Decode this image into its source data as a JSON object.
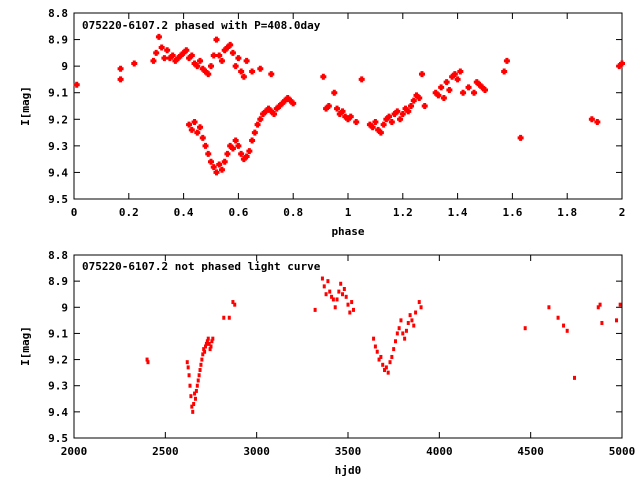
{
  "colors": {
    "points": "#ff0000",
    "axes": "#000000",
    "background": "#ffffff"
  },
  "chart_data": [
    {
      "type": "scatter",
      "title": "075220-6107.2 phased with P=408.0day",
      "xlabel": "phase",
      "ylabel": "I[mag]",
      "xlim": [
        0,
        2
      ],
      "ylim": [
        8.8,
        9.5
      ],
      "y_inverted": true,
      "grid": false,
      "marker": "filled-square-star",
      "xticks": [
        0,
        0.2,
        0.4,
        0.6,
        0.8,
        1,
        1.2,
        1.4,
        1.6,
        1.8,
        2
      ],
      "xtick_labels": [
        "0",
        "0.2",
        "0.4",
        "0.6",
        "0.8",
        "1",
        "1.2",
        "1.4",
        "1.6",
        "1.8",
        "2"
      ],
      "yticks": [
        8.8,
        8.9,
        9.0,
        9.1,
        9.2,
        9.3,
        9.4,
        9.5
      ],
      "ytick_labels": [
        "8.8",
        "8.9",
        "9",
        "9.1",
        "9.2",
        "9.3",
        "9.4",
        "9.5"
      ],
      "x": [
        0.01,
        0.17,
        0.17,
        0.22,
        0.29,
        0.3,
        0.31,
        0.32,
        0.33,
        0.34,
        0.35,
        0.36,
        0.37,
        0.38,
        0.39,
        0.4,
        0.41,
        0.42,
        0.43,
        0.44,
        0.45,
        0.46,
        0.47,
        0.48,
        0.49,
        0.5,
        0.51,
        0.52,
        0.53,
        0.54,
        0.55,
        0.56,
        0.57,
        0.58,
        0.59,
        0.6,
        0.61,
        0.62,
        0.63,
        0.65,
        0.68,
        0.72,
        0.42,
        0.43,
        0.44,
        0.45,
        0.46,
        0.47,
        0.48,
        0.49,
        0.5,
        0.51,
        0.52,
        0.53,
        0.54,
        0.55,
        0.56,
        0.57,
        0.58,
        0.59,
        0.6,
        0.61,
        0.62,
        0.63,
        0.64,
        0.65,
        0.66,
        0.67,
        0.68,
        0.69,
        0.7,
        0.71,
        0.72,
        0.73,
        0.74,
        0.75,
        0.76,
        0.77,
        0.78,
        0.79,
        0.8,
        0.91,
        0.92,
        0.93,
        0.95,
        0.96,
        0.97,
        0.98,
        0.99,
        1.0,
        1.01,
        1.03,
        1.05,
        1.08,
        1.09,
        1.1,
        1.11,
        1.12,
        1.13,
        1.14,
        1.15,
        1.16,
        1.17,
        1.18,
        1.19,
        1.2,
        1.21,
        1.22,
        1.23,
        1.24,
        1.25,
        1.26,
        1.27,
        1.28,
        1.32,
        1.33,
        1.34,
        1.35,
        1.36,
        1.37,
        1.38,
        1.39,
        1.4,
        1.41,
        1.42,
        1.44,
        1.46,
        1.47,
        1.48,
        1.49,
        1.5,
        1.57,
        1.58,
        1.63,
        1.89,
        1.91,
        1.99,
        2.0
      ],
      "y": [
        9.07,
        9.01,
        9.05,
        8.99,
        8.98,
        8.95,
        8.89,
        8.93,
        8.97,
        8.94,
        8.97,
        8.96,
        8.98,
        8.97,
        8.96,
        8.95,
        8.94,
        8.97,
        8.96,
        8.99,
        9.0,
        8.98,
        9.01,
        9.02,
        9.03,
        9.0,
        8.96,
        8.9,
        8.96,
        8.98,
        8.94,
        8.93,
        8.92,
        8.95,
        9.0,
        8.97,
        9.02,
        9.04,
        8.98,
        9.02,
        9.01,
        9.03,
        9.22,
        9.24,
        9.21,
        9.25,
        9.23,
        9.27,
        9.3,
        9.33,
        9.36,
        9.38,
        9.4,
        9.37,
        9.39,
        9.36,
        9.33,
        9.3,
        9.31,
        9.28,
        9.3,
        9.33,
        9.35,
        9.34,
        9.32,
        9.28,
        9.25,
        9.22,
        9.2,
        9.18,
        9.17,
        9.16,
        9.17,
        9.18,
        9.16,
        9.15,
        9.14,
        9.13,
        9.12,
        9.13,
        9.14,
        9.04,
        9.16,
        9.15,
        9.1,
        9.16,
        9.18,
        9.17,
        9.19,
        9.2,
        9.19,
        9.21,
        9.05,
        9.22,
        9.23,
        9.21,
        9.24,
        9.25,
        9.22,
        9.2,
        9.19,
        9.21,
        9.18,
        9.17,
        9.2,
        9.18,
        9.16,
        9.17,
        9.15,
        9.13,
        9.11,
        9.12,
        9.03,
        9.15,
        9.1,
        9.11,
        9.08,
        9.12,
        9.06,
        9.09,
        9.04,
        9.03,
        9.05,
        9.02,
        9.1,
        9.08,
        9.1,
        9.06,
        9.07,
        9.08,
        9.09,
        9.02,
        8.98,
        9.27,
        9.2,
        9.21,
        9.0,
        8.99
      ]
    },
    {
      "type": "scatter",
      "title": "075220-6107.2 not phased light curve",
      "xlabel": "hjd0",
      "ylabel": "I[mag]",
      "xlim": [
        2000,
        5000
      ],
      "ylim": [
        8.8,
        9.5
      ],
      "y_inverted": true,
      "grid": false,
      "marker": "small-dot",
      "xticks": [
        2000,
        2500,
        3000,
        3500,
        4000,
        4500,
        5000
      ],
      "xtick_labels": [
        "2000",
        "2500",
        "3000",
        "3500",
        "4000",
        "4500",
        "5000"
      ],
      "yticks": [
        8.8,
        8.9,
        9.0,
        9.1,
        9.2,
        9.3,
        9.4,
        9.5
      ],
      "ytick_labels": [
        "8.8",
        "8.9",
        "9",
        "9.1",
        "9.2",
        "9.3",
        "9.4",
        "9.5"
      ],
      "x": [
        2400,
        2405,
        2620,
        2625,
        2630,
        2635,
        2640,
        2645,
        2650,
        2655,
        2660,
        2665,
        2670,
        2675,
        2680,
        2685,
        2690,
        2695,
        2700,
        2705,
        2710,
        2715,
        2720,
        2725,
        2730,
        2735,
        2740,
        2745,
        2750,
        2755,
        2760,
        2820,
        2850,
        2870,
        2880,
        3320,
        3360,
        3370,
        3380,
        3390,
        3400,
        3410,
        3420,
        3430,
        3440,
        3450,
        3460,
        3470,
        3480,
        3490,
        3500,
        3510,
        3520,
        3530,
        3640,
        3650,
        3660,
        3670,
        3680,
        3690,
        3700,
        3710,
        3720,
        3730,
        3740,
        3750,
        3760,
        3770,
        3780,
        3790,
        3800,
        3810,
        3820,
        3830,
        3840,
        3850,
        3860,
        3870,
        3890,
        3900,
        4470,
        4600,
        4650,
        4680,
        4700,
        4740,
        4870,
        4880,
        4890,
        4970,
        4990
      ],
      "y": [
        9.2,
        9.21,
        9.21,
        9.23,
        9.26,
        9.3,
        9.34,
        9.38,
        9.4,
        9.37,
        9.33,
        9.35,
        9.32,
        9.3,
        9.28,
        9.26,
        9.24,
        9.22,
        9.2,
        9.18,
        9.16,
        9.17,
        9.15,
        9.14,
        9.13,
        9.12,
        9.14,
        9.16,
        9.15,
        9.13,
        9.12,
        9.04,
        9.04,
        8.98,
        8.99,
        9.01,
        8.89,
        8.92,
        8.95,
        8.9,
        8.94,
        8.96,
        8.97,
        9.0,
        8.97,
        8.94,
        8.91,
        8.95,
        8.93,
        8.96,
        8.99,
        9.02,
        8.98,
        9.01,
        9.12,
        9.15,
        9.17,
        9.2,
        9.19,
        9.22,
        9.24,
        9.23,
        9.25,
        9.21,
        9.19,
        9.16,
        9.13,
        9.1,
        9.08,
        9.05,
        9.1,
        9.12,
        9.09,
        9.06,
        9.03,
        9.05,
        9.07,
        9.02,
        8.98,
        9.0,
        9.08,
        9.0,
        9.04,
        9.07,
        9.09,
        9.27,
        9.0,
        8.99,
        9.06,
        9.05,
        8.99
      ]
    }
  ]
}
